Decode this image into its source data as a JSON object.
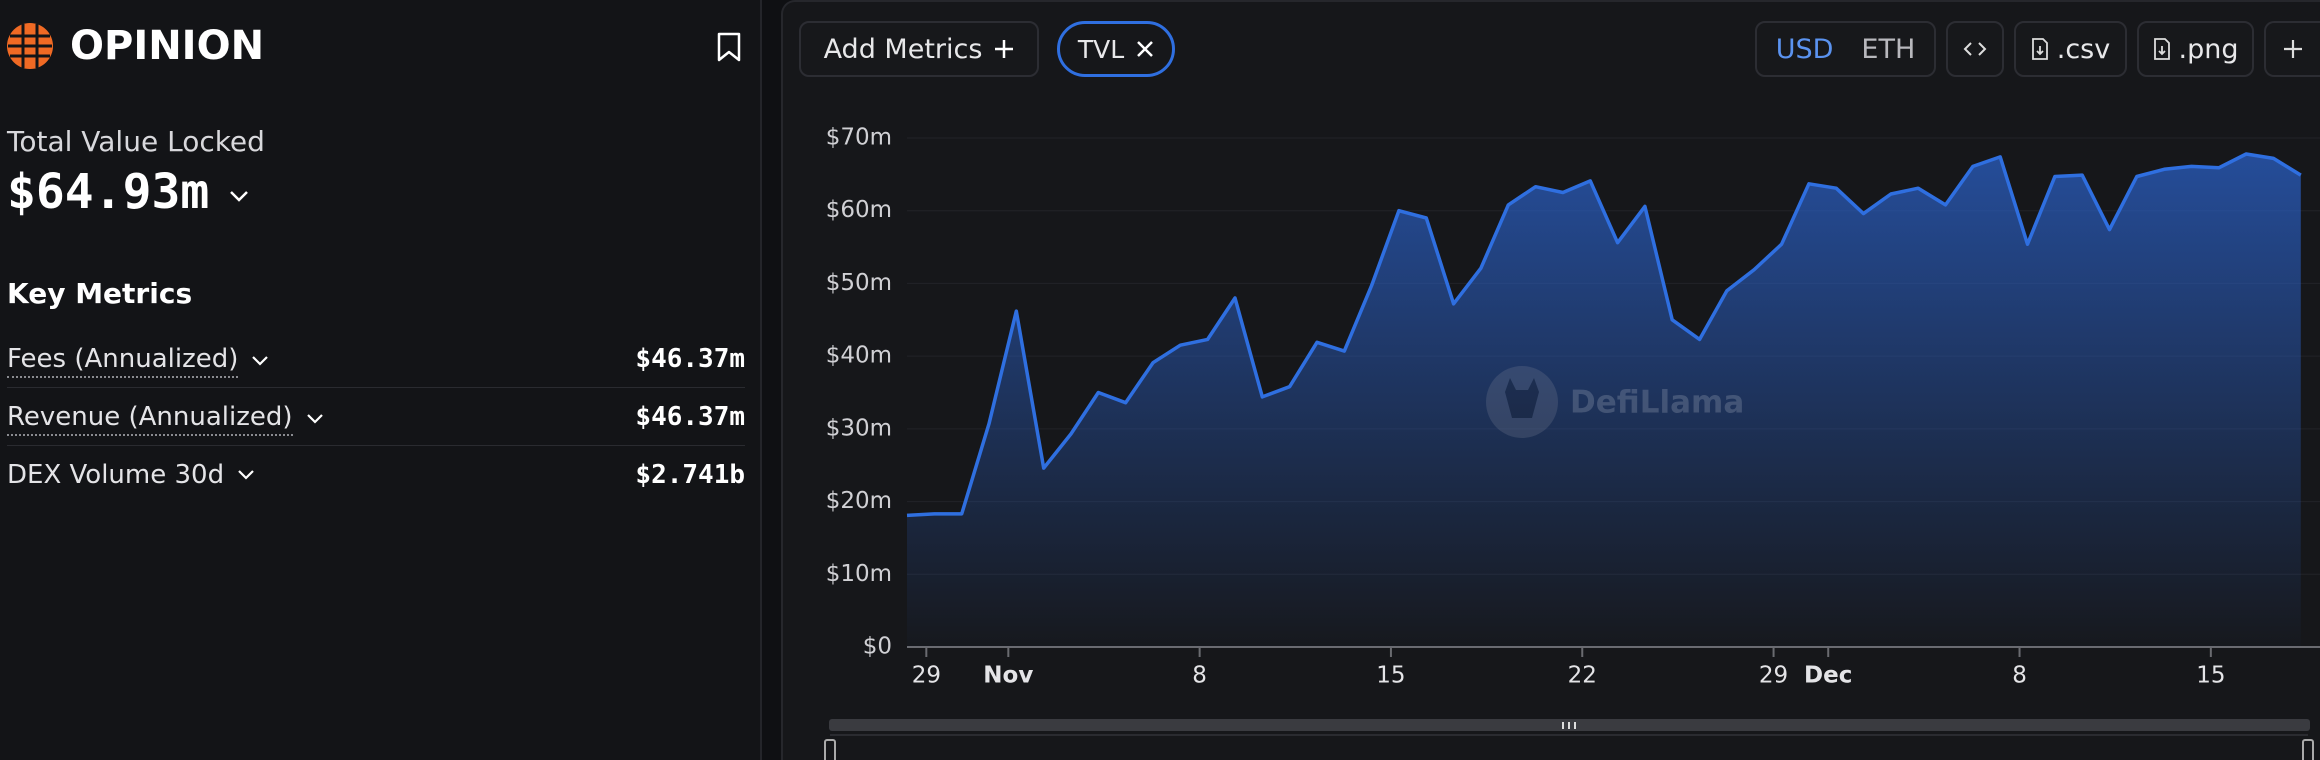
{
  "header": {
    "title": "OPINION"
  },
  "summary": {
    "label": "Total Value Locked",
    "value": "$64.93m"
  },
  "key_metrics": {
    "title": "Key Metrics",
    "rows": [
      {
        "label": "Fees (Annualized)",
        "value": "$46.37m"
      },
      {
        "label": "Revenue (Annualized)",
        "value": "$46.37m"
      },
      {
        "label": "DEX Volume 30d",
        "value": "$2.741b"
      }
    ]
  },
  "toolbar": {
    "add_metrics": "Add Metrics",
    "currencies": [
      "USD",
      "ETH"
    ],
    "export_csv": ".csv",
    "export_png": ".png"
  },
  "chart_data": {
    "type": "area",
    "watermark": "DefiLlama",
    "categories": [
      "Oct 28",
      "Oct 29",
      "Oct 30",
      "Oct 31",
      "Nov 1",
      "Nov 2",
      "Nov 3",
      "Nov 4",
      "Nov 5",
      "Nov 6",
      "Nov 7",
      "Nov 8",
      "Nov 9",
      "Nov 10",
      "Nov 11",
      "Nov 12",
      "Nov 13",
      "Nov 14",
      "Nov 15",
      "Nov 16",
      "Nov 17",
      "Nov 18",
      "Nov 19",
      "Nov 20",
      "Nov 21",
      "Nov 22",
      "Nov 23",
      "Nov 24",
      "Nov 25",
      "Nov 26",
      "Nov 27",
      "Nov 28",
      "Nov 29",
      "Nov 30",
      "Dec 1",
      "Dec 2",
      "Dec 3",
      "Dec 4",
      "Dec 5",
      "Dec 6",
      "Dec 7",
      "Dec 8",
      "Dec 9",
      "Dec 10",
      "Dec 11",
      "Dec 12",
      "Dec 13",
      "Dec 14",
      "Dec 15",
      "Dec 16",
      "Dec 17",
      "Dec 18"
    ],
    "series": [
      {
        "name": "TVL",
        "color": "#2f6fe0",
        "values": [
          18.1,
          18.3,
          18.3,
          30.7,
          46.2,
          24.6,
          29.3,
          35.0,
          33.6,
          39.1,
          41.5,
          42.3,
          48.0,
          34.4,
          35.8,
          41.9,
          40.7,
          49.7,
          60.0,
          59.0,
          47.2,
          52.1,
          60.8,
          63.3,
          62.5,
          64.1,
          55.6,
          60.6,
          45.0,
          42.3,
          49.0,
          51.9,
          55.4,
          63.7,
          63.1,
          59.6,
          62.3,
          63.1,
          60.8,
          66.1,
          67.4,
          55.4,
          64.7,
          64.9,
          57.4,
          64.7,
          65.7,
          66.1,
          65.9,
          67.8,
          67.2,
          64.9
        ]
      }
    ],
    "ylim": [
      0,
      70
    ],
    "yticks": [
      {
        "value": 0,
        "label": "$0"
      },
      {
        "value": 10,
        "label": "$10m"
      },
      {
        "value": 20,
        "label": "$20m"
      },
      {
        "value": 30,
        "label": "$30m"
      },
      {
        "value": 40,
        "label": "$40m"
      },
      {
        "value": 50,
        "label": "$50m"
      },
      {
        "value": 60,
        "label": "$60m"
      },
      {
        "value": 70,
        "label": "$70m"
      }
    ],
    "xticks": [
      {
        "value": "Oct 29",
        "label": "29"
      },
      {
        "value": "Nov 1",
        "label": "Nov"
      },
      {
        "value": "Nov 8",
        "label": "8"
      },
      {
        "value": "Nov 15",
        "label": "15"
      },
      {
        "value": "Nov 22",
        "label": "22"
      },
      {
        "value": "Nov 29",
        "label": "29"
      },
      {
        "value": "Dec 1",
        "label": "Dec"
      },
      {
        "value": "Dec 8",
        "label": "8"
      },
      {
        "value": "Dec 15",
        "label": "15"
      }
    ],
    "grid": true
  }
}
